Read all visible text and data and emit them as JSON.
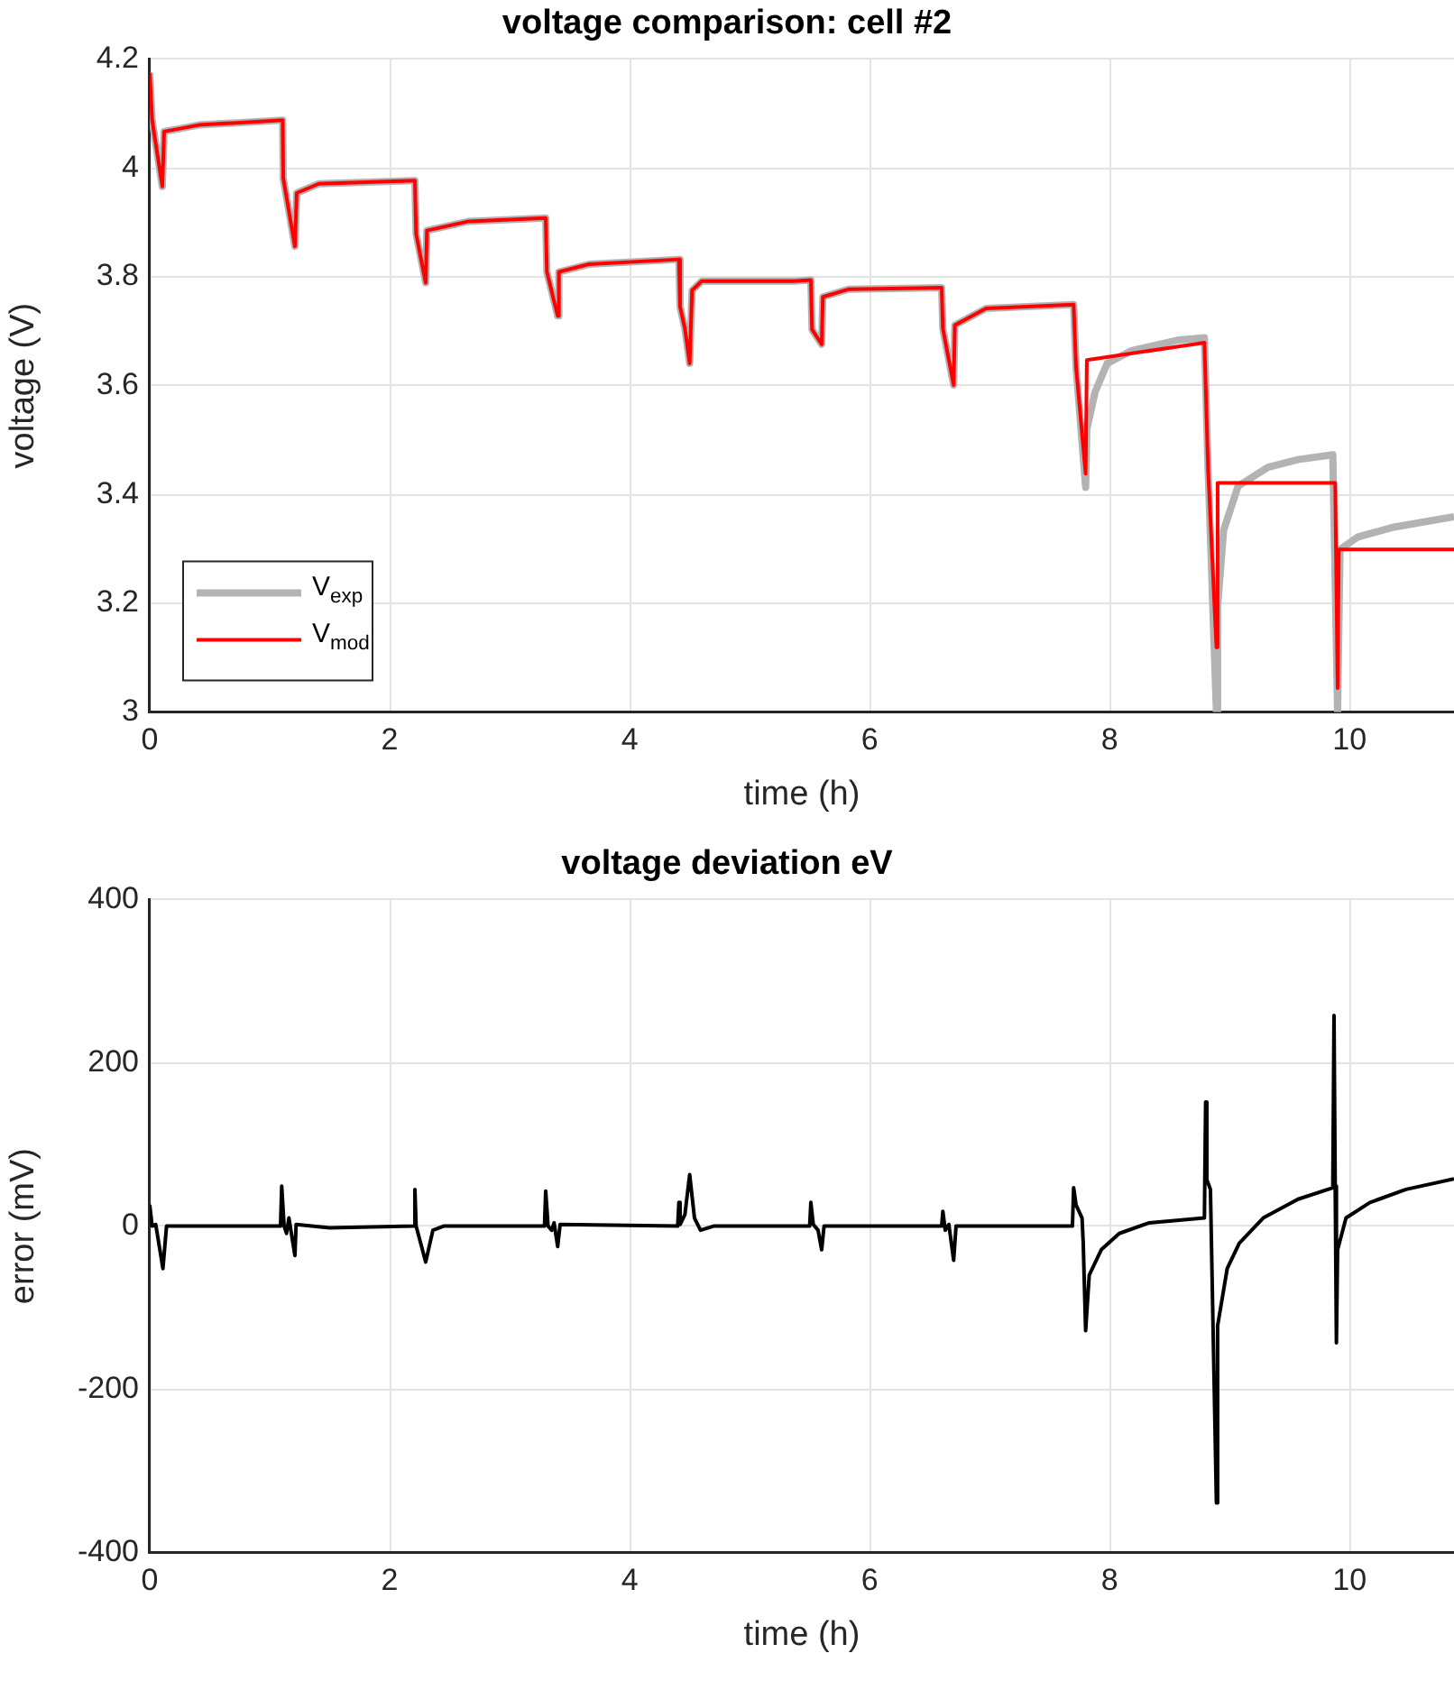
{
  "chart_data": [
    {
      "type": "line",
      "title": "voltage comparison: cell #2",
      "xlabel": "time (h)",
      "ylabel": "voltage (V)",
      "xlim": [
        0,
        10.87
      ],
      "xticks": [
        0,
        2,
        4,
        6,
        8,
        10
      ],
      "ylim": [
        3,
        4.2
      ],
      "yticks": [
        3,
        3.2,
        3.4,
        3.6,
        3.8,
        4,
        4.2
      ],
      "grid": true,
      "legend": "bottom left",
      "marker": "none",
      "line_style": "solid",
      "series": [
        {
          "name": "V$_{exp}$",
          "color": "#b3b3b3",
          "x": [
            0,
            0.02,
            0.105,
            0.12,
            0.41,
            1.108,
            1.113,
            1.21,
            1.225,
            1.41,
            2.21,
            2.22,
            2.3,
            2.31,
            2.66,
            3.3,
            3.31,
            3.4,
            3.41,
            3.66,
            4.41,
            4.42,
            4.46,
            4.5,
            4.52,
            4.6,
            5.37,
            5.51,
            5.52,
            5.6,
            5.61,
            5.82,
            6.6,
            6.61,
            6.7,
            6.71,
            6.97,
            7.7,
            7.72,
            7.8,
            7.81,
            7.88,
            7.98,
            8.18,
            8.58,
            8.79,
            8.82,
            8.89,
            8.9,
            8.95,
            9.07,
            9.32,
            9.57,
            9.86,
            9.9,
            9.92,
            10.07,
            10.37,
            10.87
          ],
          "values": [
            4.175,
            4.088,
            3.966,
            4.067,
            4.079,
            4.088,
            3.981,
            3.856,
            3.954,
            3.971,
            3.977,
            3.879,
            3.789,
            3.885,
            3.902,
            3.908,
            3.809,
            3.728,
            3.809,
            3.823,
            3.832,
            3.745,
            3.705,
            3.641,
            3.775,
            3.792,
            3.792,
            3.794,
            3.703,
            3.676,
            3.763,
            3.777,
            3.78,
            3.705,
            3.601,
            3.711,
            3.742,
            3.749,
            3.635,
            3.413,
            3.52,
            3.589,
            3.641,
            3.664,
            3.684,
            3.688,
            3.45,
            3,
            3.195,
            3.334,
            3.415,
            3.45,
            3.464,
            3.473,
            3,
            3.299,
            3.322,
            3.34,
            3.359
          ]
        },
        {
          "name": "V$_{mod}$",
          "color": "#ff0000",
          "x": [
            0,
            0.02,
            0.105,
            0.12,
            0.41,
            1.108,
            1.113,
            1.21,
            1.225,
            1.41,
            2.21,
            2.22,
            2.3,
            2.31,
            2.66,
            3.3,
            3.31,
            3.4,
            3.41,
            3.66,
            4.41,
            4.42,
            4.46,
            4.5,
            4.52,
            4.6,
            5.37,
            5.51,
            5.52,
            5.6,
            5.61,
            5.82,
            6.6,
            6.61,
            6.7,
            6.71,
            6.97,
            7.7,
            7.72,
            7.8,
            7.81,
            8.79,
            8.82,
            8.89,
            8.9,
            9.88,
            9.9,
            9.91,
            10.87
          ],
          "values": [
            4.175,
            4.088,
            3.966,
            4.067,
            4.079,
            4.088,
            3.981,
            3.856,
            3.954,
            3.971,
            3.977,
            3.879,
            3.789,
            3.885,
            3.902,
            3.908,
            3.809,
            3.728,
            3.809,
            3.823,
            3.832,
            3.745,
            3.705,
            3.641,
            3.775,
            3.792,
            3.792,
            3.794,
            3.703,
            3.676,
            3.763,
            3.777,
            3.78,
            3.705,
            3.601,
            3.711,
            3.742,
            3.749,
            3.635,
            3.438,
            3.647,
            3.679,
            3.45,
            3.119,
            3.421,
            3.421,
            3.044,
            3.299,
            3.299
          ]
        }
      ]
    },
    {
      "type": "line",
      "title": "voltage deviation eV",
      "xlabel": "time (h)",
      "ylabel": "error (mV)",
      "xlim": [
        0,
        10.87
      ],
      "xticks": [
        0,
        2,
        4,
        6,
        8,
        10
      ],
      "ylim": [
        -400,
        400
      ],
      "yticks": [
        -400,
        -200,
        0,
        200,
        400
      ],
      "grid": true,
      "marker": "none",
      "line_style": "solid",
      "series": [
        {
          "color": "#000000",
          "x": [
            0,
            0.02,
            0.05,
            0.11,
            0.14,
            1.09,
            1.1,
            1.12,
            1.14,
            1.16,
            1.21,
            1.22,
            1.5,
            2.2,
            2.21,
            2.22,
            2.3,
            2.36,
            2.45,
            3.29,
            3.3,
            3.32,
            3.35,
            3.37,
            3.4,
            3.42,
            4.4,
            4.41,
            4.42,
            4.46,
            4.5,
            4.54,
            4.59,
            4.7,
            5.5,
            5.51,
            5.53,
            5.57,
            5.6,
            5.62,
            6.6,
            6.61,
            6.63,
            6.66,
            6.7,
            6.72,
            7.69,
            7.7,
            7.72,
            7.77,
            7.78,
            7.8,
            7.83,
            7.93,
            8.08,
            8.33,
            8.79,
            8.8,
            8.81,
            8.84,
            8.89,
            8.9,
            8.98,
            9.08,
            9.28,
            9.57,
            9.86,
            9.87,
            9.88,
            9.89,
            9.9,
            9.97,
            10.17,
            10.47,
            10.87
          ],
          "values": [
            26,
            0,
            2,
            -52,
            0,
            0,
            49,
            0,
            -9,
            10,
            -36,
            2,
            -2,
            0,
            45,
            0,
            -44,
            -5,
            0,
            0,
            43,
            0,
            -5,
            4,
            -25,
            2,
            0,
            29,
            2,
            14,
            63,
            10,
            -5,
            0,
            0,
            29,
            2,
            -5,
            -29,
            0,
            0,
            18,
            -5,
            2,
            -42,
            0,
            0,
            47,
            26,
            10,
            -21,
            -128,
            -60,
            -29,
            -9,
            4,
            10,
            152,
            57,
            45,
            -339,
            -122,
            -52,
            -21,
            10,
            33,
            47,
            258,
            49,
            -143,
            -29,
            10,
            29,
            45,
            58
          ]
        }
      ]
    }
  ]
}
